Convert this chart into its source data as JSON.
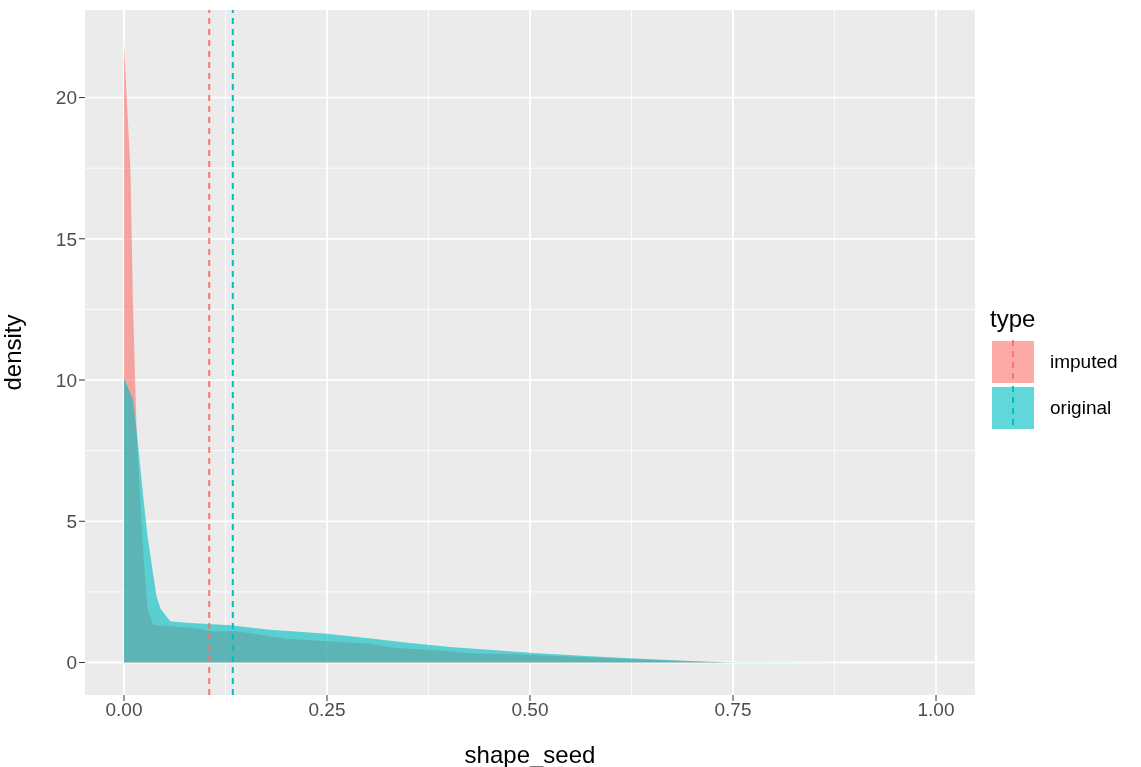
{
  "chart_data": {
    "type": "area",
    "xlabel": "shape_seed",
    "ylabel": "density",
    "legend_title": "type",
    "xlim": [
      -0.048,
      1.048
    ],
    "xticks": [
      {
        "value": 0,
        "label": "0.00"
      },
      0.25,
      {
        "value": 0.5,
        "label": "0.50"
      },
      0.75,
      {
        "value": 1,
        "label": "1.00"
      }
    ],
    "ylim": [
      -1.15,
      23.1
    ],
    "yticks": [
      0,
      5,
      10,
      15,
      20
    ],
    "grid": true,
    "legend": "right",
    "series": [
      {
        "name": "imputed",
        "color": "#f8766d",
        "x": [
          0,
          0.008,
          0.011,
          0.016,
          0.024,
          0.029,
          0.036,
          0.09,
          0.11,
          0.139,
          0.2,
          0.303,
          0.331,
          0.385,
          0.426,
          0.488,
          0.586,
          0.611,
          0.746
        ],
        "values": [
          21.9,
          17.4,
          12.7,
          7.8,
          3.75,
          1.9,
          1.34,
          1.2,
          1.11,
          1.11,
          0.84,
          0.66,
          0.52,
          0.43,
          0.33,
          0.28,
          0.17,
          0.13,
          0
        ]
      },
      {
        "name": "original",
        "color": "#00bfc4",
        "x": [
          0,
          0.001,
          0.011,
          0.016,
          0.024,
          0.029,
          0.035,
          0.04,
          0.045,
          0.057,
          0.077,
          0.131,
          0.18,
          0.25,
          0.307,
          0.344,
          0.405,
          0.488,
          0.504,
          0.586,
          0.611,
          0.709,
          0.75,
          0.885
        ],
        "values": [
          10.0,
          10.0,
          9.3,
          8.1,
          5.8,
          4.5,
          3.3,
          2.36,
          1.9,
          1.46,
          1.41,
          1.32,
          1.16,
          1.02,
          0.84,
          0.72,
          0.54,
          0.37,
          0.34,
          0.2,
          0.17,
          0.04,
          0.01,
          0
        ]
      }
    ],
    "ref_lines": [
      {
        "axis": "x",
        "value": 0.105,
        "color": "#f8766d",
        "line_style": "dashed"
      },
      {
        "axis": "x",
        "value": 0.134,
        "color": "#00bfc4",
        "line_style": "dashed"
      }
    ]
  }
}
